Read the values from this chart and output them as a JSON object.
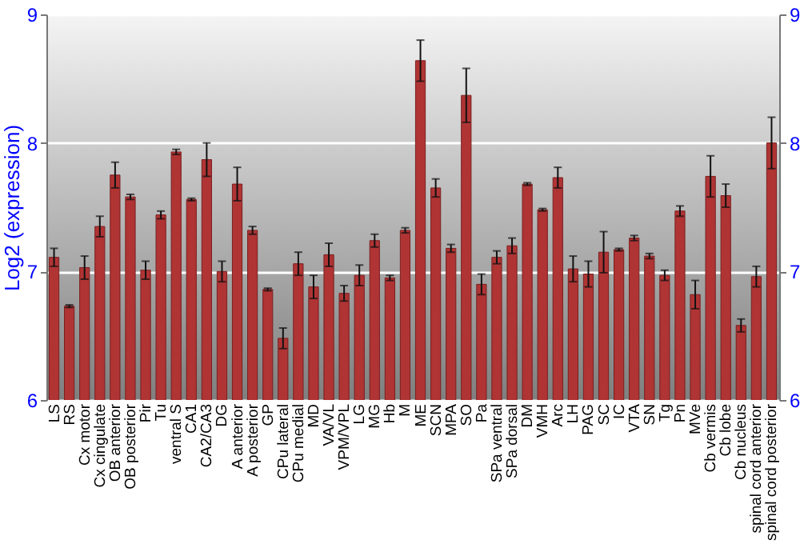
{
  "chart_data": {
    "type": "bar",
    "ylabel": "Log2 (expression)",
    "categories": [
      "LS",
      "RS",
      "Cx motor",
      "Cx cingulate",
      "OB anterior",
      "OB posterior",
      "Pir",
      "Tu",
      "ventral S",
      "CA1",
      "CA2/CA3",
      "DG",
      "A anterior",
      "A posterior",
      "GP",
      "CPu lateral",
      "CPu medial",
      "MD",
      "VA/VL",
      "VPM/VPL",
      "LG",
      "MG",
      "Hb",
      "M",
      "ME",
      "SCN",
      "MPA",
      "SO",
      "Pa",
      "SPa ventral",
      "SPa dorsal",
      "DM",
      "VMH",
      "Arc",
      "LH",
      "PAG",
      "SC",
      "IC",
      "VTA",
      "SN",
      "Tg",
      "Pn",
      "MVe",
      "Cb vermis",
      "Cb lobe",
      "Cb nucleus",
      "spinal cord anterior",
      "spinal cord posterior"
    ],
    "series": [
      {
        "color": "#b03434",
        "values": [
          7.11,
          6.73,
          7.03,
          7.35,
          7.75,
          7.58,
          7.01,
          7.44,
          7.93,
          7.56,
          7.87,
          7.0,
          7.68,
          7.32,
          6.86,
          6.48,
          7.06,
          6.88,
          7.13,
          6.83,
          6.97,
          7.24,
          6.95,
          7.32,
          8.64,
          7.65,
          7.18,
          8.37,
          6.9,
          7.11,
          7.2,
          7.68,
          7.48,
          7.73,
          7.02,
          6.98,
          7.15,
          7.17,
          7.26,
          7.12,
          6.97,
          7.47,
          6.82,
          7.74,
          7.59,
          6.58,
          6.96,
          8.0
        ],
        "errors": [
          0.07,
          0.01,
          0.09,
          0.08,
          0.1,
          0.02,
          0.07,
          0.03,
          0.02,
          0.01,
          0.13,
          0.08,
          0.13,
          0.03,
          0.01,
          0.08,
          0.09,
          0.09,
          0.09,
          0.06,
          0.08,
          0.05,
          0.02,
          0.02,
          0.16,
          0.07,
          0.03,
          0.21,
          0.08,
          0.05,
          0.06,
          0.01,
          0.01,
          0.08,
          0.1,
          0.1,
          0.16,
          0.01,
          0.02,
          0.02,
          0.04,
          0.04,
          0.11,
          0.16,
          0.09,
          0.05,
          0.08,
          0.2
        ]
      }
    ],
    "ylim": [
      6,
      9
    ],
    "yticks": [
      6,
      7,
      8,
      9
    ],
    "y2lim": [
      6,
      9
    ],
    "y2ticks": [
      6,
      7,
      8,
      9
    ],
    "grid": "y"
  }
}
